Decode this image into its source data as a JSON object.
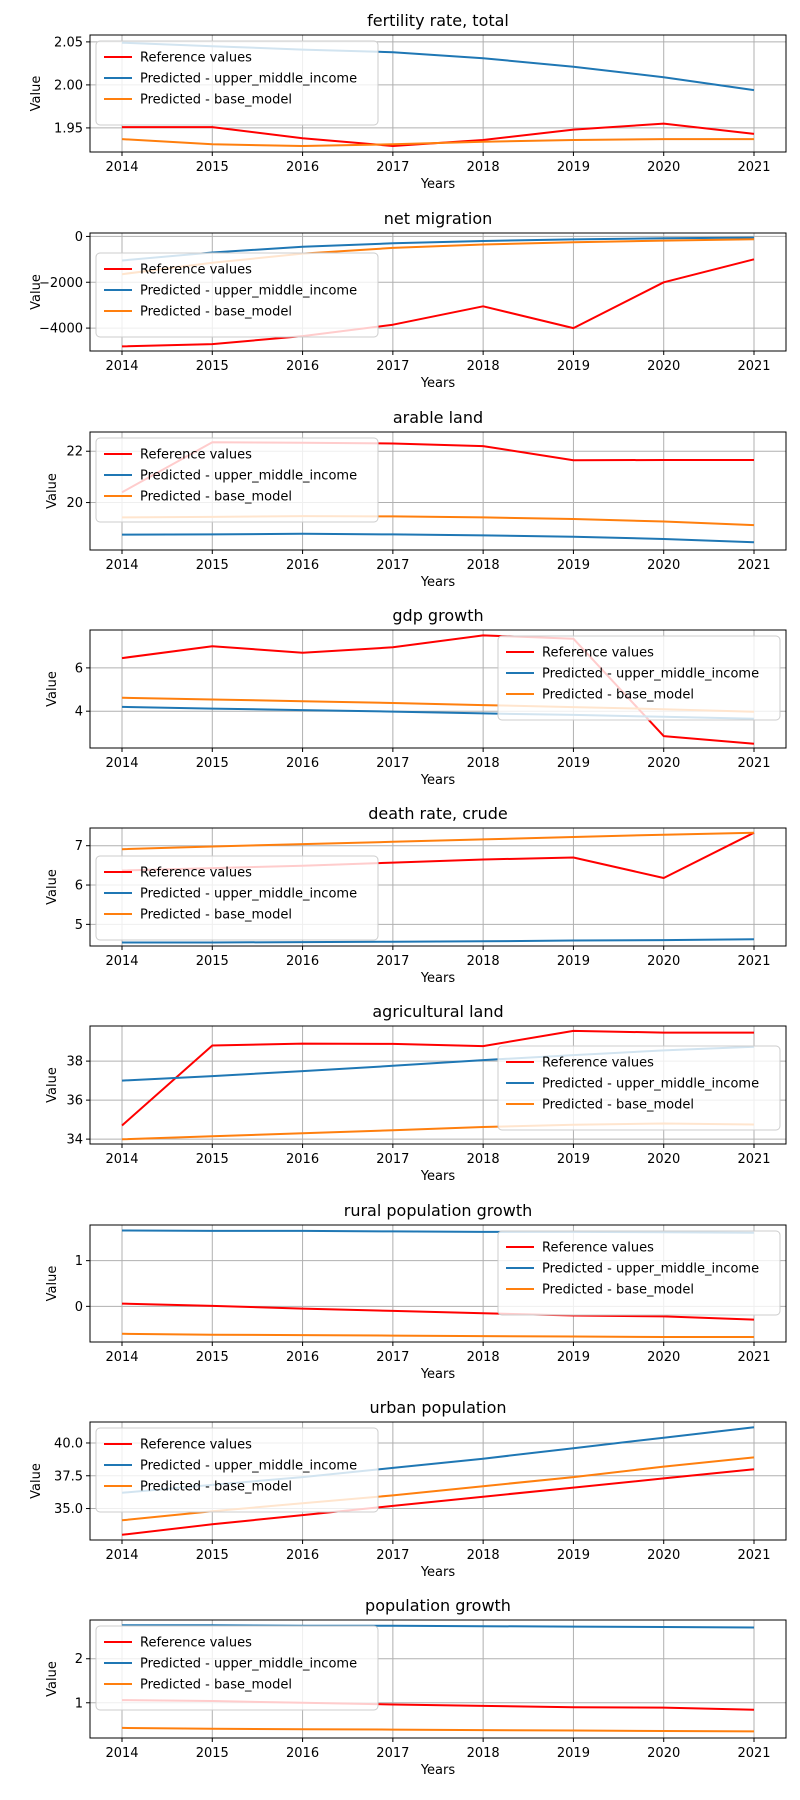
{
  "colors": {
    "reference": "#ff0000",
    "upper_middle_income": "#1f77b4",
    "base_model": "#ff7f0e",
    "grid": "#b0b0b0"
  },
  "chart_data": [
    {
      "type": "line",
      "title": "fertility rate, total",
      "xlabel": "Years",
      "ylabel": "Value",
      "x": [
        2014,
        2015,
        2016,
        2017,
        2018,
        2019,
        2020,
        2021
      ],
      "ylim": [
        1.922,
        2.058
      ],
      "yticks": [
        1.95,
        2.0,
        2.05
      ],
      "ytick_labels": [
        "1.95",
        "2.00",
        "2.05"
      ],
      "grid": true,
      "legend": "upper-left",
      "series": [
        {
          "name": "Reference values",
          "values": [
            1.951,
            1.951,
            1.938,
            1.929,
            1.936,
            1.948,
            1.955,
            1.943
          ]
        },
        {
          "name": "Predicted - upper_middle_income",
          "values": [
            2.049,
            2.045,
            2.041,
            2.038,
            2.031,
            2.021,
            2.009,
            1.994
          ]
        },
        {
          "name": "Predicted - base_model",
          "values": [
            1.937,
            1.931,
            1.929,
            1.931,
            1.934,
            1.936,
            1.937,
            1.937
          ]
        }
      ]
    },
    {
      "type": "line",
      "title": "net migration",
      "xlabel": "Years",
      "ylabel": "Value",
      "x": [
        2014,
        2015,
        2016,
        2017,
        2018,
        2019,
        2020,
        2021
      ],
      "ylim": [
        -5000,
        150
      ],
      "yticks": [
        -4000,
        -2000,
        0
      ],
      "ytick_labels": [
        "−4000",
        "−2000",
        "0"
      ],
      "grid": true,
      "legend": "center-left",
      "series": [
        {
          "name": "Reference values",
          "values": [
            -4800,
            -4700,
            -4350,
            -3850,
            -3050,
            -4000,
            -2000,
            -1000
          ]
        },
        {
          "name": "Predicted - upper_middle_income",
          "values": [
            -1050,
            -700,
            -450,
            -300,
            -200,
            -130,
            -80,
            -50
          ]
        },
        {
          "name": "Predicted - base_model",
          "values": [
            -1650,
            -1150,
            -750,
            -500,
            -350,
            -250,
            -180,
            -120
          ]
        }
      ]
    },
    {
      "type": "line",
      "title": "arable land",
      "xlabel": "Years",
      "ylabel": "Value",
      "x": [
        2014,
        2015,
        2016,
        2017,
        2018,
        2019,
        2020,
        2021
      ],
      "ylim": [
        18.15,
        22.75
      ],
      "yticks": [
        20,
        22
      ],
      "ytick_labels": [
        "20",
        "22"
      ],
      "grid": true,
      "legend": "upper-left",
      "series": [
        {
          "name": "Reference values",
          "values": [
            20.4,
            22.35,
            22.33,
            22.3,
            22.2,
            21.65,
            21.66,
            21.66
          ]
        },
        {
          "name": "Predicted - upper_middle_income",
          "values": [
            18.75,
            18.76,
            18.78,
            18.76,
            18.72,
            18.67,
            18.58,
            18.45
          ]
        },
        {
          "name": "Predicted - base_model",
          "values": [
            19.42,
            19.44,
            19.47,
            19.46,
            19.42,
            19.36,
            19.26,
            19.12
          ]
        }
      ]
    },
    {
      "type": "line",
      "title": "gdp growth",
      "xlabel": "Years",
      "ylabel": "Value",
      "x": [
        2014,
        2015,
        2016,
        2017,
        2018,
        2019,
        2020,
        2021
      ],
      "ylim": [
        2.3,
        7.75
      ],
      "yticks": [
        4,
        6
      ],
      "ytick_labels": [
        "4",
        "6"
      ],
      "grid": true,
      "legend": "upper-right",
      "series": [
        {
          "name": "Reference values",
          "values": [
            6.45,
            7.0,
            6.7,
            6.95,
            7.5,
            7.35,
            2.85,
            2.5
          ]
        },
        {
          "name": "Predicted - upper_middle_income",
          "values": [
            4.2,
            4.12,
            4.05,
            3.98,
            3.9,
            3.83,
            3.74,
            3.65
          ]
        },
        {
          "name": "Predicted - base_model",
          "values": [
            4.62,
            4.54,
            4.46,
            4.38,
            4.28,
            4.19,
            4.09,
            3.97
          ]
        }
      ]
    },
    {
      "type": "line",
      "title": "death rate, crude",
      "xlabel": "Years",
      "ylabel": "Value",
      "x": [
        2014,
        2015,
        2016,
        2017,
        2018,
        2019,
        2020,
        2021
      ],
      "ylim": [
        4.45,
        7.45
      ],
      "yticks": [
        5,
        6,
        7
      ],
      "ytick_labels": [
        "5",
        "6",
        "7"
      ],
      "grid": true,
      "legend": "lower-left",
      "series": [
        {
          "name": "Reference values",
          "values": [
            6.37,
            6.43,
            6.49,
            6.57,
            6.65,
            6.7,
            6.18,
            7.33
          ]
        },
        {
          "name": "Predicted - upper_middle_income",
          "values": [
            4.54,
            4.54,
            4.55,
            4.56,
            4.57,
            4.59,
            4.6,
            4.62
          ]
        },
        {
          "name": "Predicted - base_model",
          "values": [
            6.91,
            6.98,
            7.04,
            7.1,
            7.16,
            7.22,
            7.28,
            7.33
          ]
        }
      ]
    },
    {
      "type": "line",
      "title": "agricultural land",
      "xlabel": "Years",
      "ylabel": "Value",
      "x": [
        2014,
        2015,
        2016,
        2017,
        2018,
        2019,
        2020,
        2021
      ],
      "ylim": [
        33.75,
        39.8
      ],
      "yticks": [
        34,
        36,
        38
      ],
      "ytick_labels": [
        "34",
        "36",
        "38"
      ],
      "grid": true,
      "legend": "center-right",
      "series": [
        {
          "name": "Reference values",
          "values": [
            34.7,
            38.8,
            38.9,
            38.88,
            38.77,
            39.55,
            39.46,
            39.46
          ]
        },
        {
          "name": "Predicted - upper_middle_income",
          "values": [
            37.0,
            37.23,
            37.49,
            37.76,
            38.05,
            38.31,
            38.55,
            38.74
          ]
        },
        {
          "name": "Predicted - base_model",
          "values": [
            33.99,
            34.15,
            34.3,
            34.46,
            34.62,
            34.74,
            34.8,
            34.75
          ]
        }
      ]
    },
    {
      "type": "line",
      "title": "rural population growth",
      "xlabel": "Years",
      "ylabel": "Value",
      "x": [
        2014,
        2015,
        2016,
        2017,
        2018,
        2019,
        2020,
        2021
      ],
      "ylim": [
        -0.78,
        1.78
      ],
      "yticks": [
        0,
        1
      ],
      "ytick_labels": [
        "0",
        "1"
      ],
      "grid": true,
      "legend": "upper-right",
      "series": [
        {
          "name": "Reference values",
          "values": [
            0.06,
            0.01,
            -0.05,
            -0.1,
            -0.15,
            -0.2,
            -0.22,
            -0.29
          ]
        },
        {
          "name": "Predicted - upper_middle_income",
          "values": [
            1.66,
            1.65,
            1.65,
            1.64,
            1.63,
            1.63,
            1.62,
            1.61
          ]
        },
        {
          "name": "Predicted - base_model",
          "values": [
            -0.6,
            -0.62,
            -0.63,
            -0.64,
            -0.65,
            -0.66,
            -0.67,
            -0.67
          ]
        }
      ]
    },
    {
      "type": "line",
      "title": "urban population",
      "xlabel": "Years",
      "ylabel": "Value",
      "x": [
        2014,
        2015,
        2016,
        2017,
        2018,
        2019,
        2020,
        2021
      ],
      "ylim": [
        32.6,
        41.6
      ],
      "yticks": [
        35.0,
        37.5,
        40.0
      ],
      "ytick_labels": [
        "35.0",
        "37.5",
        "40.0"
      ],
      "grid": true,
      "legend": "upper-left",
      "series": [
        {
          "name": "Reference values",
          "values": [
            33.0,
            33.8,
            34.5,
            35.2,
            35.9,
            36.6,
            37.3,
            38.0
          ]
        },
        {
          "name": "Predicted - upper_middle_income",
          "values": [
            36.2,
            36.8,
            37.4,
            38.1,
            38.8,
            39.6,
            40.4,
            41.2
          ]
        },
        {
          "name": "Predicted - base_model",
          "values": [
            34.1,
            34.8,
            35.4,
            36.0,
            36.7,
            37.4,
            38.2,
            38.9
          ]
        }
      ]
    },
    {
      "type": "line",
      "title": "population growth",
      "xlabel": "Years",
      "ylabel": "Value",
      "x": [
        2014,
        2015,
        2016,
        2017,
        2018,
        2019,
        2020,
        2021
      ],
      "ylim": [
        0.2,
        2.88
      ],
      "yticks": [
        1,
        2
      ],
      "ytick_labels": [
        "1",
        "2"
      ],
      "grid": true,
      "legend": "upper-left",
      "series": [
        {
          "name": "Reference values",
          "values": [
            1.06,
            1.04,
            1.0,
            0.96,
            0.93,
            0.9,
            0.89,
            0.84
          ]
        },
        {
          "name": "Predicted - upper_middle_income",
          "values": [
            2.76,
            2.76,
            2.75,
            2.75,
            2.74,
            2.73,
            2.72,
            2.71
          ]
        },
        {
          "name": "Predicted - base_model",
          "values": [
            0.43,
            0.41,
            0.4,
            0.39,
            0.38,
            0.37,
            0.36,
            0.35
          ]
        }
      ]
    }
  ]
}
